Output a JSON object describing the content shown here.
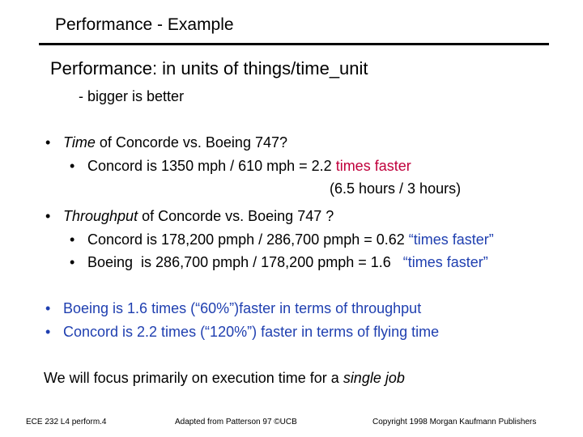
{
  "slide": {
    "title": "Performance - Example",
    "heading": "Performance: in units of things/time_unit",
    "subheading": "- bigger is better",
    "bullet_char": "•",
    "time": {
      "em": "Time",
      "rest": " of Concorde vs. Boeing 747?",
      "sub1_black": "Concord is 1350 mph / 610 mph = 2.2 ",
      "sub1_red": "times faster",
      "sub1_cont": "(6.5 hours / 3 hours)"
    },
    "throughput": {
      "em": "Throughput",
      "rest": " of Concorde vs. Boeing 747 ?",
      "sub1_black": "Concord is 178,200 pmph / 286,700 pmph = 0.62 ",
      "sub1_blue": "“times faster”",
      "sub2_black": "Boeing  is 286,700 pmph / 178,200 pmph = 1.6   ",
      "sub2_blue": "“times faster”"
    },
    "conclusions": [
      "Boeing is 1.6 times (“60%”)faster in terms of throughput",
      "Concord is 2.2 times (“120%”) faster in terms of flying time"
    ],
    "focus_plain": "We will focus primarily on execution time for a ",
    "focus_em": "single job"
  },
  "footer": {
    "left": "ECE 232  L4 perform.4",
    "center": "Adapted from Patterson 97 ©UCB",
    "right": "Copyright 1998 Morgan Kaufmann Publishers"
  }
}
